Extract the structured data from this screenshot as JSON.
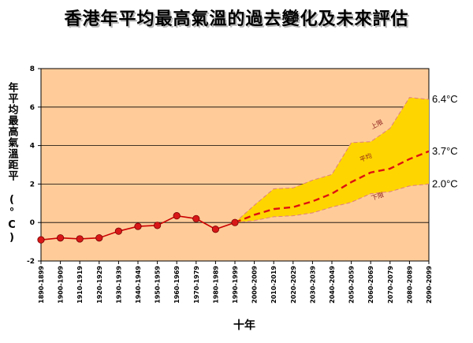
{
  "title": "香港年平均最高氣溫的過去變化及未來評估",
  "chart_data": {
    "type": "line",
    "title": "香港年平均最高氣溫的過去變化及未來評估",
    "ylabel": "年平均最高氣溫距平 (°C)",
    "xlabel": "十年",
    "ylim": [
      -2,
      8
    ],
    "yticks": [
      -2,
      0,
      2,
      4,
      6,
      8
    ],
    "grid": true,
    "categories": [
      "1890-1899",
      "1900-1909",
      "1910-1919",
      "1920-1929",
      "1930-1939",
      "1940-1949",
      "1950-1959",
      "1960-1969",
      "1970-1979",
      "1980-1989",
      "1990-1999",
      "2000-2009",
      "2010-2019",
      "2020-2029",
      "2030-2039",
      "2040-2049",
      "2050-2059",
      "2060-2069",
      "2070-2079",
      "2080-2089",
      "2090-2099"
    ],
    "series": [
      {
        "name": "observed",
        "color": "#cc0000",
        "marker": "circle",
        "values": [
          -0.9,
          -0.8,
          -0.85,
          -0.8,
          -0.45,
          -0.2,
          -0.15,
          0.35,
          0.2,
          -0.35,
          0.0,
          null,
          null,
          null,
          null,
          null,
          null,
          null,
          null,
          null,
          null
        ]
      },
      {
        "name": "平均",
        "color": "#dd1111",
        "style": "dashed",
        "values": [
          null,
          null,
          null,
          null,
          null,
          null,
          null,
          null,
          null,
          null,
          0.0,
          0.4,
          0.7,
          0.8,
          1.1,
          1.5,
          2.1,
          2.6,
          2.8,
          3.3,
          3.7
        ]
      },
      {
        "name": "上限",
        "color": "#e08080",
        "style": "dashed",
        "values": [
          null,
          null,
          null,
          null,
          null,
          null,
          null,
          null,
          null,
          null,
          0.0,
          0.9,
          1.75,
          1.8,
          2.2,
          2.5,
          4.15,
          4.2,
          4.9,
          6.5,
          6.4
        ]
      },
      {
        "name": "下限",
        "color": "#e08080",
        "style": "dashed",
        "values": [
          null,
          null,
          null,
          null,
          null,
          null,
          null,
          null,
          null,
          null,
          0.0,
          0.1,
          0.3,
          0.35,
          0.5,
          0.8,
          1.05,
          1.5,
          1.6,
          1.9,
          2.0
        ]
      }
    ],
    "band_color": "#ffd500",
    "plot_bg": "#ffcc99",
    "end_labels": [
      "6.4°C",
      "3.7°C",
      "2.0°C"
    ],
    "band_labels": {
      "upper": "上限",
      "mean": "平均",
      "lower": "下限"
    }
  }
}
